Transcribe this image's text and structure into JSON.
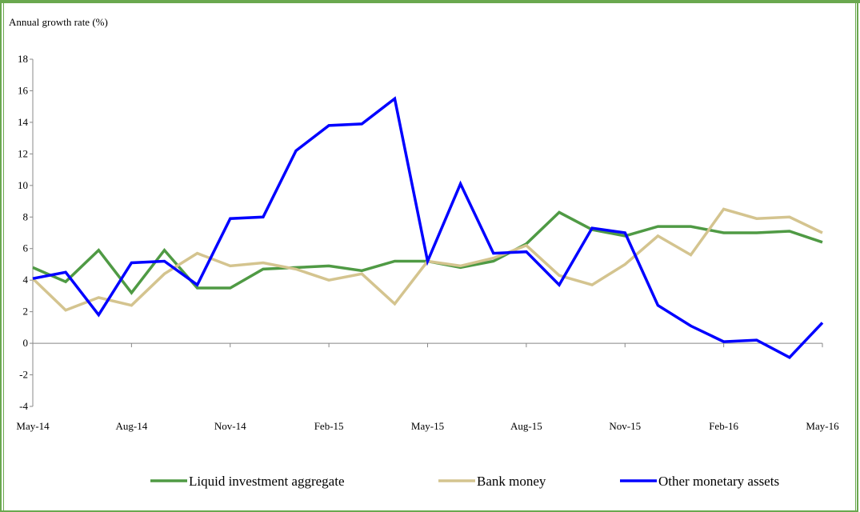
{
  "chart_data": {
    "type": "line",
    "ylabel": "Annual growth rate (%)",
    "ylim": [
      -4,
      18
    ],
    "yticks": [
      "-4",
      "-2",
      "0",
      "2",
      "4",
      "6",
      "8",
      "10",
      "12",
      "14",
      "16",
      "18"
    ],
    "xtick_labels": [
      "May-14",
      "Aug-14",
      "Nov-14",
      "Feb-15",
      "May-15",
      "Aug-15",
      "Nov-15",
      "Feb-16",
      "May-16"
    ],
    "x": [
      "May-14",
      "Jun-14",
      "Jul-14",
      "Aug-14",
      "Sep-14",
      "Oct-14",
      "Nov-14",
      "Dec-14",
      "Jan-15",
      "Feb-15",
      "Mar-15",
      "Apr-15",
      "May-15",
      "Jun-15",
      "Jul-15",
      "Aug-15",
      "Sep-15",
      "Oct-15",
      "Nov-15",
      "Dec-15",
      "Jan-16",
      "Feb-16",
      "Mar-16",
      "Apr-16",
      "May-16"
    ],
    "legend_position": "bottom",
    "series": [
      {
        "name": "Liquid investment aggregate",
        "color": "#4f9a44",
        "values": [
          4.8,
          3.9,
          5.9,
          3.2,
          5.9,
          3.5,
          3.5,
          4.7,
          4.8,
          4.9,
          4.6,
          5.2,
          5.2,
          4.8,
          5.2,
          6.3,
          8.3,
          7.2,
          6.8,
          7.4,
          7.4,
          7.0,
          7.0,
          7.1,
          6.4
        ]
      },
      {
        "name": "Bank money",
        "color": "#d4c48f",
        "values": [
          4.1,
          2.1,
          2.9,
          2.4,
          4.4,
          5.7,
          4.9,
          5.1,
          4.7,
          4.0,
          4.4,
          2.5,
          5.2,
          4.9,
          5.4,
          6.2,
          4.3,
          3.7,
          5.0,
          6.8,
          5.6,
          8.5,
          7.9,
          8.0,
          7.0
        ]
      },
      {
        "name": "Other monetary assets",
        "color": "#0000ff",
        "values": [
          4.1,
          4.5,
          1.8,
          5.1,
          5.2,
          3.7,
          7.9,
          8.0,
          12.2,
          13.8,
          13.9,
          15.5,
          5.2,
          10.1,
          5.7,
          5.8,
          3.7,
          7.3,
          7.0,
          2.4,
          1.1,
          0.1,
          0.2,
          -0.9,
          1.3
        ]
      }
    ]
  }
}
